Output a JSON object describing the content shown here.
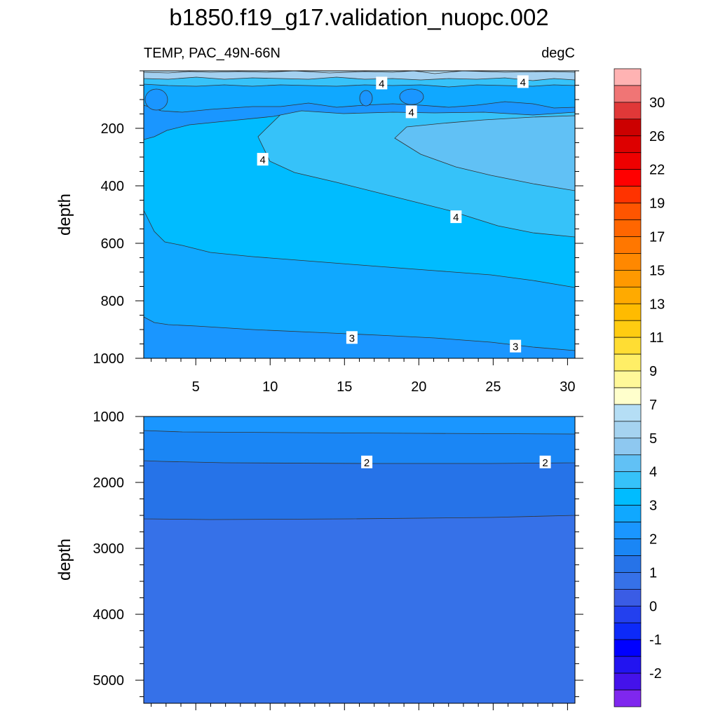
{
  "title": "b1850.f19_g17.validation_nuopc.002",
  "chart_data": [
    {
      "type": "heatmap",
      "subtitle_left": "TEMP, PAC_49N-66N",
      "subtitle_right": "degC",
      "ylabel": "depth",
      "xlim": [
        1.5,
        30.5
      ],
      "ylim": [
        0,
        1000
      ],
      "y_reversed": true,
      "x_ticks": [
        "5",
        "10",
        "15",
        "20",
        "25",
        "30"
      ],
      "y_ticks": [
        "200",
        "400",
        "600",
        "800",
        "1000"
      ],
      "fill_bands": [
        {
          "range": "5.0-5.5",
          "color": "#a3d0f0",
          "approx_depth_top": 30,
          "approx_depth_bottom": 45
        },
        {
          "range": "4.5-5.0",
          "color": "#61c1f5",
          "region": "core at x 21-31, depth 200-420"
        },
        {
          "range": "4.0-4.5",
          "color": "#36c2f9",
          "region": "tongue from x 9, depth 200-580"
        },
        {
          "range": "3.5-4.0",
          "color": "#00bcff",
          "region": "depth 200-750"
        },
        {
          "range": "3.0-3.5",
          "color": "#10a8ff",
          "region": "depth 500-950"
        },
        {
          "range": "2.5-3.0",
          "color": "#1a96ff",
          "region": "depth 850-1000"
        }
      ],
      "contour_labels": [
        {
          "text": "4",
          "x": 17.5,
          "y": 45
        },
        {
          "text": "4",
          "x": 27.0,
          "y": 40
        },
        {
          "text": "4",
          "x": 19.5,
          "y": 145
        },
        {
          "text": "4",
          "x": 9.5,
          "y": 310
        },
        {
          "text": "4",
          "x": 22.5,
          "y": 510
        },
        {
          "text": "3",
          "x": 15.5,
          "y": 930
        },
        {
          "text": "3",
          "x": 26.5,
          "y": 960
        }
      ]
    },
    {
      "type": "heatmap",
      "ylabel": "depth",
      "xlim": [
        1.5,
        30.5
      ],
      "ylim": [
        1000,
        5350
      ],
      "y_reversed": true,
      "y_ticks": [
        "1000",
        "2000",
        "3000",
        "4000",
        "5000"
      ],
      "fill_bands": [
        {
          "range": "2.5-3.0",
          "color": "#1a96ff",
          "approx_depth_top": 1000,
          "approx_depth_bottom": 1250
        },
        {
          "range": "2.0-2.5",
          "color": "#1a86f5",
          "approx_depth_top": 1250,
          "approx_depth_bottom": 1700
        },
        {
          "range": "1.5-2.0",
          "color": "#2673e8",
          "approx_depth_top": 1700,
          "approx_depth_bottom": 2550
        },
        {
          "range": "1.0-1.5",
          "color": "#3671e8",
          "approx_depth_top": 2550,
          "approx_depth_bottom": 5350
        }
      ],
      "contour_labels": [
        {
          "text": "2",
          "x": 16.5,
          "y": 1700
        },
        {
          "text": "2",
          "x": 28.5,
          "y": 1700
        }
      ]
    }
  ],
  "colorbar": {
    "labels": [
      "30",
      "26",
      "22",
      "19",
      "17",
      "15",
      "13",
      "11",
      "9",
      "7",
      "5",
      "4",
      "3",
      "2",
      "1",
      "0",
      "-1",
      "-2"
    ],
    "colors": [
      "#ffb3b3",
      "#f07575",
      "#e03838",
      "#cc0000",
      "#dd0000",
      "#ee0000",
      "#ff0000",
      "#ff3300",
      "#ff5500",
      "#ff6600",
      "#ff7700",
      "#ff8800",
      "#ff9900",
      "#ffaa00",
      "#ffbb00",
      "#ffcc11",
      "#ffdd33",
      "#ffee66",
      "#fff899",
      "#ffffcc",
      "#b5def5",
      "#a5d3f0",
      "#8ec8f0",
      "#61c1f5",
      "#36c2f9",
      "#00bcff",
      "#10a8ff",
      "#1a96ff",
      "#1a86f5",
      "#2673e8",
      "#3671e8",
      "#3a5ce5",
      "#2340ee",
      "#0d2af8",
      "#0000ff",
      "#2214f0",
      "#4412ea",
      "#7f27ee"
    ]
  }
}
